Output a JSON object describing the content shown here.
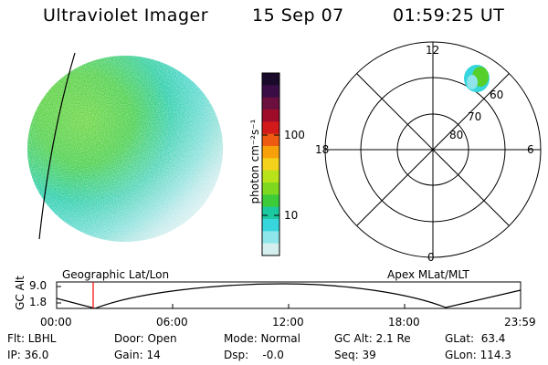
{
  "header": {
    "instrument": "Ultraviolet Imager",
    "date": "15 Sep 07",
    "time": "01:59:25 UT"
  },
  "colorbar": {
    "unit_label": "photon cm⁻²s⁻¹",
    "ticks": [
      "100",
      "10"
    ],
    "colors": [
      "#1a0a2a",
      "#3a0d46",
      "#6a0f3e",
      "#9e0c2a",
      "#d21a1a",
      "#ee5a12",
      "#f7a00a",
      "#f4d21c",
      "#b8e21a",
      "#7fd820",
      "#3ccc3a",
      "#1cc8a0",
      "#37d6dc",
      "#8fe6ea",
      "#d5efee"
    ]
  },
  "polar_plot": {
    "top_label": "12",
    "bottom_label": "0",
    "left_label": "18",
    "right_label": "6",
    "ring_labels": [
      "60",
      "70",
      "80"
    ]
  },
  "altitude_plot": {
    "left_title": "Geographic Lat/Lon",
    "right_title": "Apex MLat/MLT",
    "y_axis_label": "GC Alt",
    "y_ticks": [
      "9.0",
      "1.8"
    ],
    "x_ticks": [
      "00:00",
      "06:00",
      "12:00",
      "18:00",
      "23:59"
    ],
    "marker_color": "#ff0000"
  },
  "params": {
    "flt": "Flt: LBHL",
    "ip": "IP: 36.0",
    "door": "Door: Open",
    "gain": "Gain: 14",
    "mode": "Mode: Normal",
    "dsp": "Dsp:    -0.0",
    "gcalt": "GC Alt: 2.1 Re",
    "seq": "Seq: 39",
    "glat": "GLat:  63.4",
    "glon": "GLon: 114.3"
  }
}
